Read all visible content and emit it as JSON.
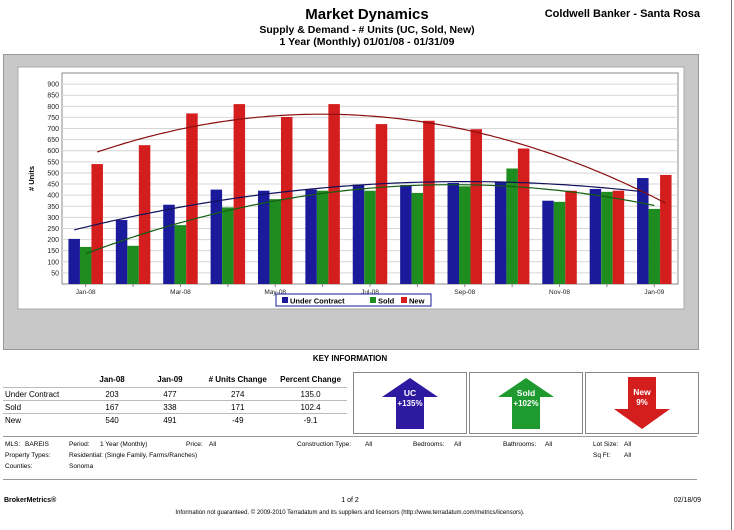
{
  "header": {
    "title": "Market Dynamics",
    "subtitle1": "Supply & Demand - # Units (UC, Sold, New)",
    "subtitle2": "1 Year (Monthly) 01/01/08 - 01/31/09",
    "brand": "Coldwell Banker - Santa Rosa"
  },
  "chart_data": {
    "type": "bar",
    "ylabel": "# Units",
    "ylim": [
      0,
      950
    ],
    "yticks": [
      50,
      100,
      150,
      200,
      250,
      300,
      350,
      400,
      450,
      500,
      550,
      600,
      650,
      700,
      750,
      800,
      850,
      900
    ],
    "categories": [
      "Jan-08",
      "Feb-08",
      "Mar-08",
      "Apr-08",
      "May-08",
      "Jun-08",
      "Jul-08",
      "Aug-08",
      "Sep-08",
      "Oct-08",
      "Nov-08",
      "Dec-08",
      "Jan-09"
    ],
    "xtick_labels": [
      "Jan-08",
      "",
      "Mar-08",
      "",
      "May-08",
      "",
      "Jul-08",
      "",
      "Sep-08",
      "",
      "Nov-08",
      "",
      "Jan-09"
    ],
    "series": [
      {
        "name": "Under Contract",
        "color": "#1a1a9a",
        "values": [
          203,
          288,
          357,
          425,
          420,
          425,
          447,
          445,
          455,
          458,
          375,
          428,
          477
        ]
      },
      {
        "name": "Sold",
        "color": "#1e8c1e",
        "values": [
          167,
          172,
          265,
          345,
          382,
          420,
          420,
          410,
          440,
          520,
          370,
          415,
          338
        ]
      },
      {
        "name": "New",
        "color": "#d41e1e",
        "values": [
          540,
          625,
          768,
          810,
          752,
          810,
          720,
          735,
          697,
          610,
          420,
          420,
          491
        ]
      }
    ],
    "trendlines": true,
    "grid": true,
    "legend_position": "bottom-center"
  },
  "key_info": {
    "title": "KEY INFORMATION",
    "headers": [
      "",
      "Jan-08",
      "Jan-09",
      "# Units Change",
      "Percent Change"
    ],
    "rows": [
      {
        "label": "Under Contract",
        "jan08": "203",
        "jan09": "477",
        "change": "274",
        "pct": "135.0"
      },
      {
        "label": "Sold",
        "jan08": "167",
        "jan09": "338",
        "change": "171",
        "pct": "102.4"
      },
      {
        "label": "New",
        "jan08": "540",
        "jan09": "491",
        "change": "-49",
        "pct": "-9.1"
      }
    ],
    "arrows": [
      {
        "label": "UC",
        "value": "+135%",
        "color": "#2e1aa0",
        "direction": "up"
      },
      {
        "label": "Sold",
        "value": "+102%",
        "color": "#1e9a2e",
        "direction": "up"
      },
      {
        "label": "New",
        "value": "9%",
        "color": "#d41e1e",
        "direction": "down"
      }
    ]
  },
  "filters": {
    "mls_label": "MLS:",
    "mls_value": "BAREIS",
    "period_label": "Period:",
    "period_value": "1 Year (Monthly)",
    "price_label": "Price:",
    "price_value": "All",
    "construction_label": "Construction Type:",
    "construction_value": "All",
    "bedrooms_label": "Bedrooms:",
    "bedrooms_value": "All",
    "bathrooms_label": "Bathrooms:",
    "bathrooms_value": "All",
    "lotsize_label": "Lot Size:",
    "lotsize_value": "All",
    "property_label": "Property Types:",
    "property_value": "Residential: (Single Family, Farms/Ranches)",
    "sqft_label": "Sq Ft:",
    "sqft_value": "All",
    "counties_label": "Counties:",
    "counties_value": "Sonoma"
  },
  "footer": {
    "brand": "BrokerMetrics®",
    "page": "1 of 2",
    "date": "02/18/09",
    "note": "Information not guaranteed. © 2009-2010 Terradatum and its suppliers and licensors (http://www.terradatum.com/metrics/licensors)."
  }
}
